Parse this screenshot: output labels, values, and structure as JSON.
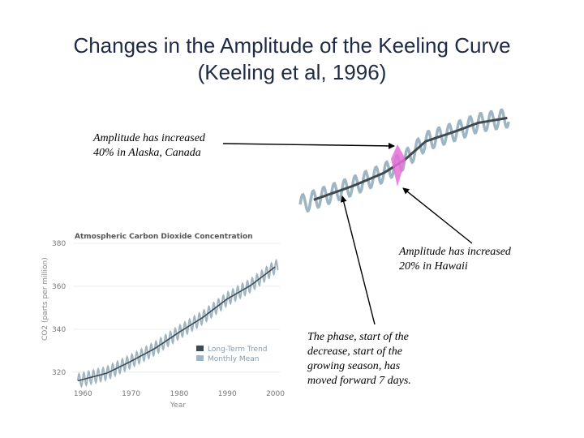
{
  "slide": {
    "title_line1": "Changes in the Amplitude of the Keeling Curve",
    "title_line2": "(Keeling et al, 1996)"
  },
  "callouts": {
    "alaska": [
      "Amplitude has increased",
      "40% in Alaska, Canada"
    ],
    "hawaii": [
      "Amplitude has increased",
      "20% in Hawaii"
    ],
    "phase": [
      "The phase, start of the",
      "decrease, start of the",
      "growing season, has",
      "moved forward 7 days."
    ]
  },
  "colors": {
    "monthly": "#9fb6c2",
    "trend": "#3e4a50",
    "highlight": "#e66fd6",
    "title": "#1f2a44"
  },
  "chart_data": [
    {
      "type": "line",
      "title": "Atmospheric Carbon Dioxide Concentration",
      "xlabel": "Year",
      "ylabel": "CO2 (parts per million)",
      "xlim": [
        1958,
        2001
      ],
      "ylim": [
        312,
        380
      ],
      "x_ticks": [
        1960,
        1970,
        1980,
        1990,
        2000
      ],
      "y_ticks": [
        320,
        340,
        360,
        380
      ],
      "legend": [
        "Long-Term Trend",
        "Monthly Mean"
      ],
      "series": [
        {
          "name": "Long-Term Trend",
          "x": [
            1959,
            1965,
            1970,
            1975,
            1980,
            1985,
            1990,
            1995,
            2000
          ],
          "values": [
            316,
            319.5,
            325,
            331,
            338.5,
            345.5,
            354,
            360.5,
            369
          ]
        },
        {
          "name": "Monthly Mean",
          "seasonal_amplitude_ppm": 3,
          "note": "same trend with annual oscillation"
        }
      ]
    },
    {
      "type": "line",
      "title": "",
      "note": "zoomed portion of the curve (no axes shown)",
      "xlim": [
        1980,
        2000
      ],
      "ylim": [
        335,
        375
      ],
      "series": [
        {
          "name": "Long-Term Trend",
          "x": [
            1980,
            1985,
            1988,
            1990,
            1992,
            1995,
            1997,
            2000
          ],
          "values": [
            338,
            345,
            350,
            355,
            362,
            366,
            369,
            371
          ]
        },
        {
          "name": "Monthly Mean",
          "seasonal_amplitude_ppm": 3.5,
          "note": "same trend with annual oscillation"
        }
      ]
    }
  ]
}
